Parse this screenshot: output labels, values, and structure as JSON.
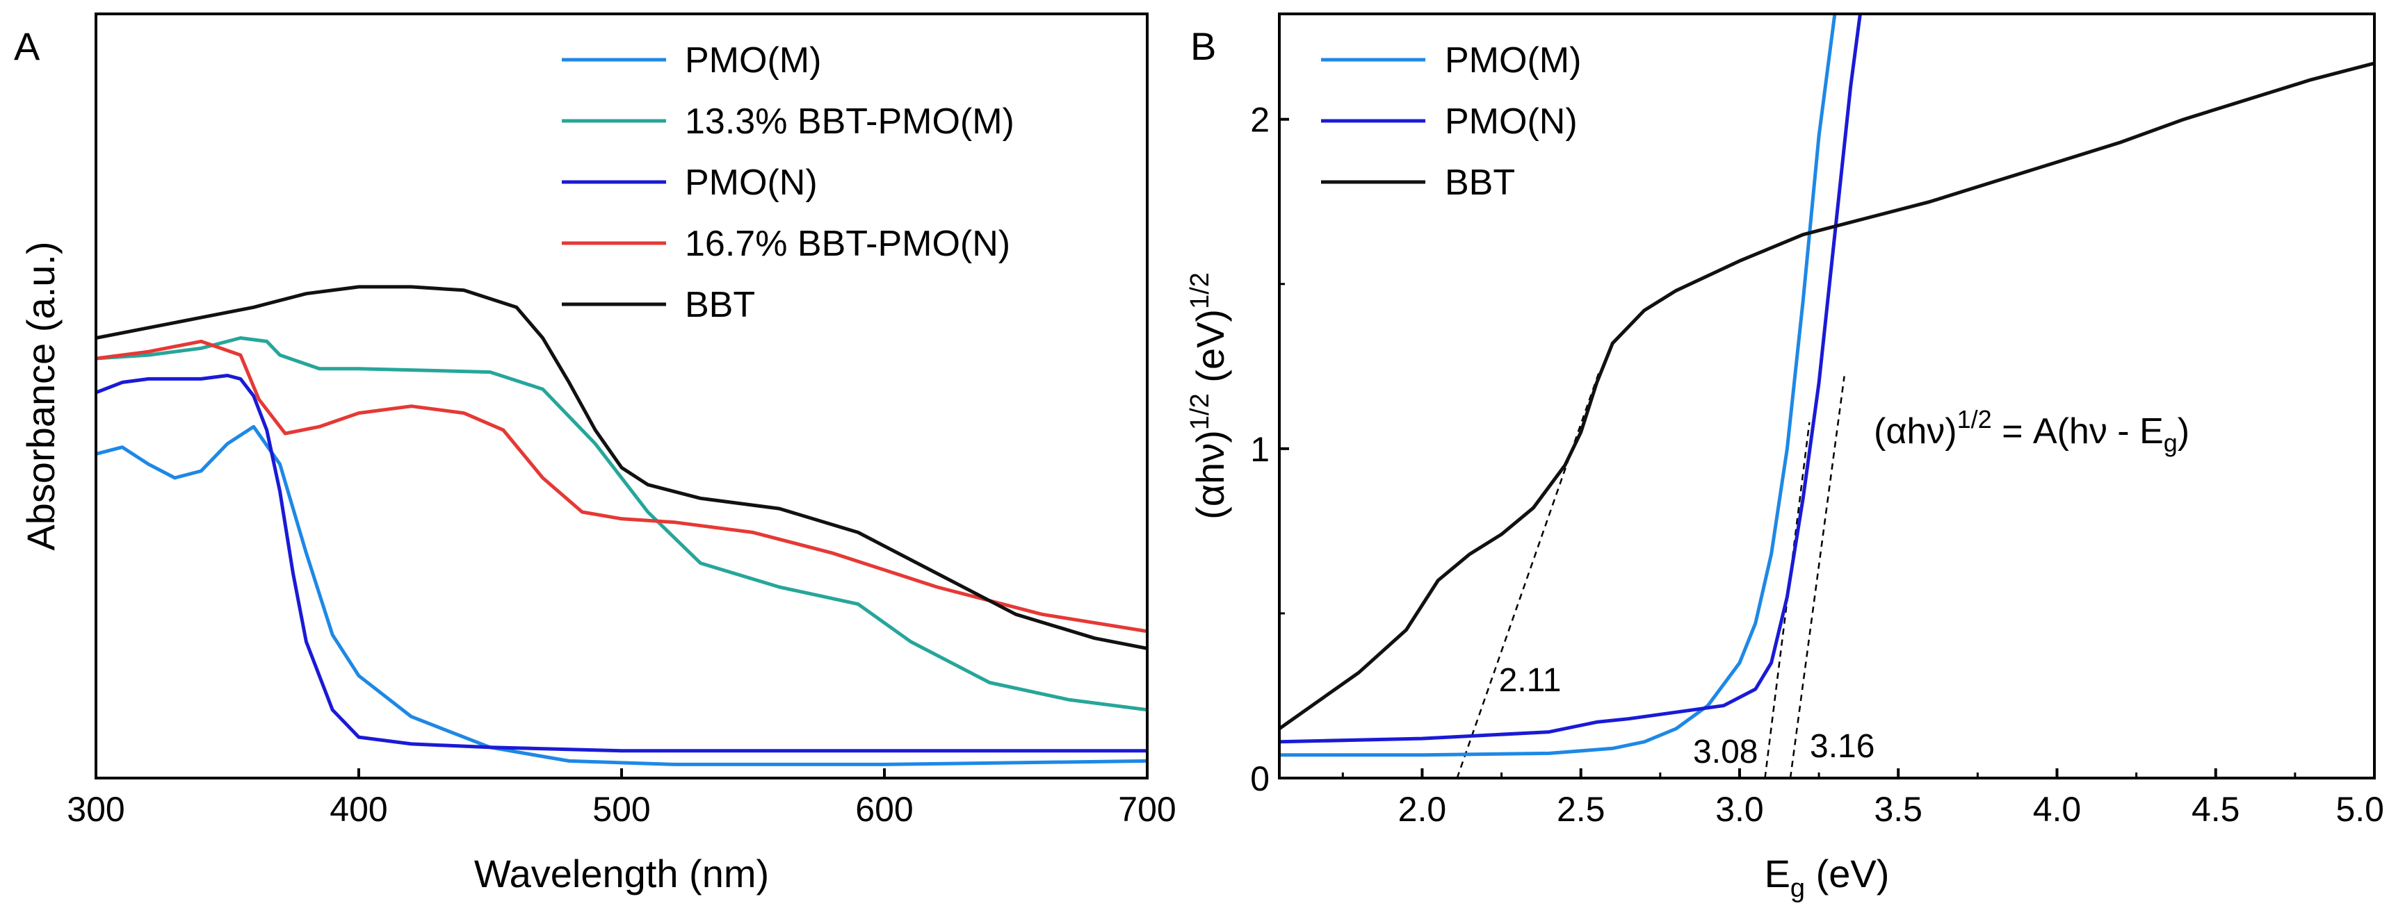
{
  "chart_data": [
    {
      "panel": "A",
      "type": "line",
      "xlabel": "Wavelength (nm)",
      "ylabel": "Absorbance (a.u.)",
      "xlim": [
        300,
        700
      ],
      "ylim": [
        0,
        1.12
      ],
      "xticks": [
        300,
        400,
        500,
        600,
        700
      ],
      "yticks": [],
      "grid": false,
      "legend_position": "top-right",
      "series": [
        {
          "name": "PMO(M)",
          "color": "#1e88e5",
          "x": [
            300,
            310,
            320,
            330,
            340,
            350,
            360,
            370,
            380,
            390,
            400,
            420,
            450,
            480,
            520,
            600,
            700
          ],
          "y": [
            0.475,
            0.485,
            0.46,
            0.44,
            0.45,
            0.49,
            0.515,
            0.46,
            0.33,
            0.21,
            0.15,
            0.09,
            0.045,
            0.025,
            0.02,
            0.02,
            0.025
          ]
        },
        {
          "name": "13.3% BBT-PMO(M)",
          "color": "#26a69a",
          "x": [
            300,
            320,
            340,
            355,
            365,
            370,
            385,
            400,
            450,
            470,
            490,
            510,
            530,
            560,
            590,
            610,
            640,
            670,
            700
          ],
          "y": [
            0.615,
            0.62,
            0.63,
            0.645,
            0.64,
            0.62,
            0.6,
            0.6,
            0.595,
            0.57,
            0.49,
            0.39,
            0.315,
            0.28,
            0.255,
            0.2,
            0.14,
            0.115,
            0.1
          ]
        },
        {
          "name": "PMO(N)",
          "color": "#1a1ad6",
          "x": [
            300,
            310,
            320,
            340,
            350,
            355,
            360,
            365,
            370,
            375,
            380,
            390,
            400,
            420,
            450,
            500,
            600,
            700
          ],
          "y": [
            0.565,
            0.58,
            0.585,
            0.585,
            0.59,
            0.585,
            0.56,
            0.51,
            0.42,
            0.3,
            0.2,
            0.1,
            0.06,
            0.05,
            0.045,
            0.04,
            0.04,
            0.04
          ]
        },
        {
          "name": "16.7% BBT-PMO(N)",
          "color": "#e53935",
          "x": [
            300,
            320,
            340,
            355,
            362,
            372,
            385,
            400,
            420,
            440,
            455,
            470,
            485,
            500,
            520,
            550,
            580,
            620,
            660,
            700
          ],
          "y": [
            0.615,
            0.625,
            0.64,
            0.62,
            0.555,
            0.505,
            0.515,
            0.535,
            0.545,
            0.535,
            0.51,
            0.44,
            0.39,
            0.38,
            0.375,
            0.36,
            0.33,
            0.28,
            0.24,
            0.215
          ]
        },
        {
          "name": "BBT",
          "color": "#111111",
          "x": [
            300,
            320,
            340,
            360,
            380,
            400,
            420,
            440,
            460,
            470,
            480,
            490,
            500,
            510,
            530,
            560,
            590,
            620,
            650,
            680,
            700
          ],
          "y": [
            0.645,
            0.66,
            0.675,
            0.69,
            0.71,
            0.72,
            0.72,
            0.715,
            0.69,
            0.645,
            0.58,
            0.51,
            0.455,
            0.43,
            0.41,
            0.395,
            0.36,
            0.3,
            0.24,
            0.205,
            0.19
          ]
        }
      ]
    },
    {
      "panel": "B",
      "type": "line",
      "xlabel": "E",
      "xlabel_sub": "g",
      "xlabel_unit": " (eV)",
      "ylabel": "(αhν)",
      "ylabel_sup": "1/2",
      "ylabel_unit": " (eV)",
      "ylabel_unit_sup": "1/2",
      "xlim": [
        1.55,
        5.0
      ],
      "ylim": [
        0,
        2.32
      ],
      "xticks": [
        2.0,
        2.5,
        3.0,
        3.5,
        4.0,
        4.5,
        5.0
      ],
      "xtick_labels": [
        "2.0",
        "2.5",
        "3.0",
        "3.5",
        "4.0",
        "4.5",
        "5.0"
      ],
      "yticks": [
        0,
        1,
        2
      ],
      "ytick_labels": [
        "0",
        "1",
        "2"
      ],
      "grid": false,
      "legend_position": "top-left",
      "equation": {
        "lhs": "(αhν)",
        "lhs_sup": "1/2",
        "mid": " = A(hν - E",
        "sub": "g",
        "rhs": ")"
      },
      "annotations": [
        {
          "text": "2.11",
          "x": 2.11
        },
        {
          "text": "3.08",
          "x": 3.08
        },
        {
          "text": "3.16",
          "x": 3.16
        }
      ],
      "tangents": [
        {
          "x": [
            2.11,
            2.56
          ],
          "y": [
            0,
            1.24
          ]
        },
        {
          "x": [
            3.08,
            3.22
          ],
          "y": [
            0,
            1.08
          ]
        },
        {
          "x": [
            3.16,
            3.33
          ],
          "y": [
            0,
            1.22
          ]
        }
      ],
      "series": [
        {
          "name": "PMO(M)",
          "color": "#1e88e5",
          "x": [
            1.55,
            2.0,
            2.4,
            2.6,
            2.7,
            2.8,
            2.9,
            3.0,
            3.05,
            3.1,
            3.15,
            3.2,
            3.25,
            3.3
          ],
          "y": [
            0.07,
            0.07,
            0.075,
            0.09,
            0.11,
            0.15,
            0.22,
            0.35,
            0.47,
            0.68,
            1.0,
            1.45,
            1.95,
            2.32
          ]
        },
        {
          "name": "PMO(N)",
          "color": "#1a1ad6",
          "x": [
            1.55,
            2.0,
            2.4,
            2.55,
            2.65,
            2.8,
            2.95,
            3.05,
            3.1,
            3.15,
            3.2,
            3.25,
            3.3,
            3.35,
            3.38
          ],
          "y": [
            0.11,
            0.12,
            0.14,
            0.17,
            0.18,
            0.2,
            0.22,
            0.27,
            0.35,
            0.55,
            0.85,
            1.2,
            1.65,
            2.1,
            2.32
          ]
        },
        {
          "name": "BBT",
          "color": "#111111",
          "x": [
            1.55,
            1.8,
            1.95,
            2.05,
            2.15,
            2.25,
            2.35,
            2.45,
            2.5,
            2.55,
            2.6,
            2.7,
            2.8,
            3.0,
            3.2,
            3.4,
            3.6,
            3.8,
            4.0,
            4.2,
            4.4,
            4.6,
            4.8,
            5.0
          ],
          "y": [
            0.15,
            0.32,
            0.45,
            0.6,
            0.68,
            0.74,
            0.82,
            0.95,
            1.05,
            1.2,
            1.32,
            1.42,
            1.48,
            1.57,
            1.65,
            1.7,
            1.75,
            1.81,
            1.87,
            1.93,
            2.0,
            2.06,
            2.12,
            2.17
          ]
        }
      ]
    }
  ]
}
